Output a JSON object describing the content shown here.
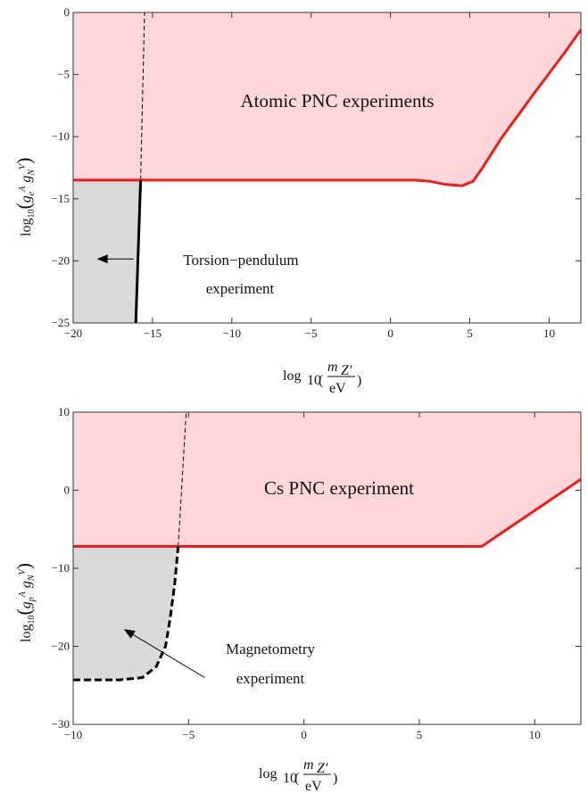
{
  "chart_data": [
    {
      "type": "area",
      "xlim": [
        -20,
        12
      ],
      "ylim": [
        -25,
        0
      ],
      "x_ticks": [
        -20,
        -15,
        -10,
        -5,
        0,
        5,
        10
      ],
      "y_ticks": [
        0,
        -5,
        -10,
        -15,
        -20,
        -25
      ],
      "xlabel_parts": {
        "log": "log",
        "sub10": "10",
        "num": "m",
        "num_sub": "Z′",
        "den": "eV"
      },
      "ylabel_parts": {
        "log": "log",
        "sub10": "10",
        "g": "g",
        "e": "e",
        "A": "A",
        "N": "N",
        "V": "V"
      },
      "annotations": {
        "region_label": "Atomic PNC experiments",
        "bound_label_1": "Torsion−pendulum",
        "bound_label_2": "experiment"
      },
      "series": [
        {
          "key": "pnc_bound",
          "points": [
            [
              -20,
              -13.5
            ],
            [
              1.5,
              -13.5
            ],
            [
              2.5,
              -13.6
            ],
            [
              3.5,
              -13.85
            ],
            [
              4.5,
              -13.95
            ],
            [
              5.2,
              -13.6
            ],
            [
              5.8,
              -12.5
            ],
            [
              7,
              -10.1
            ],
            [
              9,
              -6.6
            ],
            [
              11,
              -3.2
            ],
            [
              12,
              -1.4
            ]
          ]
        },
        {
          "key": "torsion_bound",
          "points": [
            [
              -15.75,
              -13.5
            ],
            [
              -16.05,
              -25
            ]
          ]
        },
        {
          "key": "torsion_extension",
          "points": [
            [
              -15.75,
              -13.5
            ],
            [
              -15.5,
              0
            ]
          ]
        }
      ],
      "arrow": {
        "from": [
          -16.2,
          -19.85
        ],
        "to": [
          -18.5,
          -19.85
        ]
      },
      "colors": {
        "excluded_fill": "#ffd6d9",
        "bound_line": "#ee1c1c",
        "gray_fill": "#d9d9d9",
        "black": "#000000"
      }
    },
    {
      "type": "area",
      "xlim": [
        -10,
        12
      ],
      "ylim": [
        -30,
        10
      ],
      "x_ticks": [
        -10,
        -5,
        0,
        5,
        10
      ],
      "y_ticks": [
        10,
        0,
        -10,
        -20,
        -30
      ],
      "xlabel_parts": {
        "log": "log",
        "sub10": "10",
        "num": "m",
        "num_sub": "Z′",
        "den": "eV"
      },
      "ylabel_parts": {
        "log": "log",
        "sub10": "10",
        "g": "g",
        "e": "p",
        "A": "A",
        "N": "N",
        "V": "V"
      },
      "annotations": {
        "region_label": "Cs PNC experiment",
        "bound_label_1": "Magnetometry",
        "bound_label_2": "experiment"
      },
      "series": [
        {
          "key": "pnc_bound",
          "points": [
            [
              -10,
              -7.2
            ],
            [
              7.7,
              -7.2
            ],
            [
              12,
              1.4
            ]
          ]
        },
        {
          "key": "magnetometry_bound",
          "points": [
            [
              -10,
              -24.3
            ],
            [
              -8,
              -24.3
            ],
            [
              -7,
              -24.0
            ],
            [
              -6.4,
              -22.6
            ],
            [
              -6.0,
              -20.0
            ],
            [
              -5.8,
              -16.5
            ],
            [
              -5.6,
              -12.0
            ],
            [
              -5.45,
              -7.2
            ]
          ]
        },
        {
          "key": "magnetometry_extension",
          "points": [
            [
              -5.45,
              -7.2
            ],
            [
              -5.1,
              10
            ]
          ]
        }
      ],
      "arrow": {
        "from": [
          -4.3,
          -24.0
        ],
        "to": [
          -7.8,
          -17.8
        ]
      },
      "colors": {
        "excluded_fill": "#ffd6d9",
        "bound_line": "#ee1c1c",
        "gray_fill": "#d9d9d9",
        "black": "#000000"
      }
    }
  ]
}
